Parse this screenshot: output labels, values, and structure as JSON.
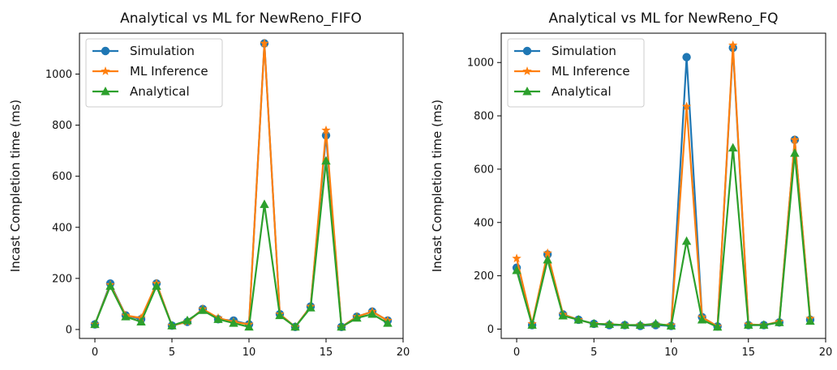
{
  "chart_data": [
    {
      "type": "line",
      "title": "Analytical vs ML for NewReno_FIFO",
      "xlabel": "",
      "ylabel": "Incast Completion time (ms)",
      "xlim": [
        -1,
        20
      ],
      "ylim": [
        -35,
        1160
      ],
      "xticks": [
        0,
        5,
        10,
        15,
        20
      ],
      "yticks": [
        0,
        200,
        400,
        600,
        800,
        1000
      ],
      "legend": "top-left",
      "x": [
        0,
        1,
        2,
        3,
        4,
        5,
        6,
        7,
        8,
        9,
        10,
        11,
        12,
        13,
        14,
        15,
        16,
        17,
        18,
        19
      ],
      "series": [
        {
          "name": "Simulation",
          "color": "#1f77b4",
          "marker": "circle",
          "values": [
            20,
            180,
            55,
            40,
            180,
            15,
            30,
            80,
            40,
            35,
            20,
            1120,
            60,
            10,
            90,
            760,
            10,
            50,
            70,
            35
          ]
        },
        {
          "name": "ML Inference",
          "color": "#ff7f0e",
          "marker": "star",
          "values": [
            20,
            175,
            55,
            45,
            180,
            15,
            30,
            80,
            45,
            30,
            20,
            1120,
            60,
            10,
            90,
            780,
            10,
            50,
            70,
            35
          ]
        },
        {
          "name": "Analytical",
          "color": "#2ca02c",
          "marker": "triangle",
          "values": [
            20,
            170,
            50,
            30,
            170,
            15,
            35,
            75,
            40,
            25,
            10,
            490,
            55,
            10,
            85,
            660,
            10,
            45,
            60,
            25
          ]
        }
      ]
    },
    {
      "type": "line",
      "title": "Analytical vs ML for NewReno_FQ",
      "xlabel": "",
      "ylabel": "Incast Completion time (ms)",
      "xlim": [
        -1,
        20
      ],
      "ylim": [
        -35,
        1110
      ],
      "xticks": [
        0,
        5,
        10,
        15,
        20
      ],
      "yticks": [
        0,
        200,
        400,
        600,
        800,
        1000
      ],
      "legend": "top-left",
      "x": [
        0,
        1,
        2,
        3,
        4,
        5,
        6,
        7,
        8,
        9,
        10,
        11,
        12,
        13,
        14,
        15,
        16,
        17,
        18,
        19
      ],
      "series": [
        {
          "name": "Simulation",
          "color": "#1f77b4",
          "marker": "circle",
          "values": [
            230,
            15,
            280,
            55,
            35,
            20,
            15,
            15,
            12,
            15,
            12,
            1020,
            45,
            10,
            1055,
            15,
            15,
            25,
            710,
            35
          ]
        },
        {
          "name": "ML Inference",
          "color": "#ff7f0e",
          "marker": "star",
          "values": [
            265,
            20,
            285,
            55,
            35,
            20,
            18,
            15,
            15,
            18,
            15,
            835,
            45,
            10,
            1065,
            18,
            15,
            28,
            710,
            40
          ]
        },
        {
          "name": "Analytical",
          "color": "#2ca02c",
          "marker": "triangle",
          "values": [
            220,
            15,
            260,
            50,
            35,
            20,
            18,
            15,
            15,
            20,
            12,
            330,
            35,
            8,
            680,
            15,
            15,
            25,
            660,
            30
          ]
        }
      ]
    }
  ]
}
